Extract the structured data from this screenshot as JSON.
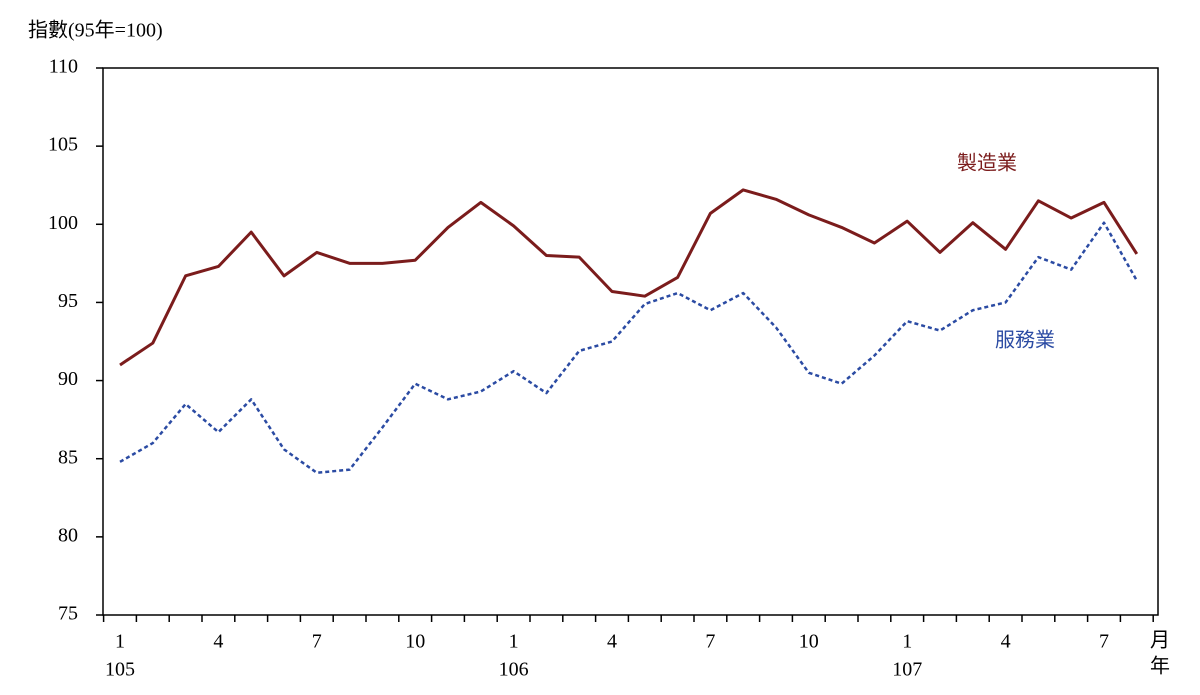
{
  "chart_data": {
    "type": "line",
    "ylabel": "指數(95年=100)",
    "xlabel": "月",
    "group_label": "年",
    "categories": [
      "1",
      null,
      null,
      "4",
      null,
      null,
      "7",
      null,
      null,
      "10",
      null,
      null,
      "1",
      null,
      null,
      "4",
      null,
      null,
      "7",
      null,
      null,
      "10",
      null,
      null,
      "1",
      null,
      null,
      "4",
      null,
      null,
      "7",
      null
    ],
    "category_groups": [
      "105",
      null,
      null,
      null,
      null,
      null,
      null,
      null,
      null,
      null,
      null,
      null,
      "106",
      null,
      null,
      null,
      null,
      null,
      null,
      null,
      null,
      null,
      null,
      null,
      "107",
      null,
      null,
      null,
      null,
      null,
      null,
      null
    ],
    "series": [
      {
        "name": "製造業",
        "color": "#7b1c1c",
        "dashed": false,
        "values": [
          91.0,
          92.4,
          96.7,
          97.3,
          99.5,
          96.7,
          98.2,
          97.5,
          97.5,
          97.7,
          99.8,
          101.4,
          99.9,
          98.0,
          97.9,
          95.7,
          95.4,
          96.6,
          100.7,
          102.2,
          101.6,
          100.6,
          99.8,
          98.8,
          100.2,
          98.2,
          100.1,
          98.4,
          101.5,
          100.4,
          101.4,
          98.1
        ]
      },
      {
        "name": "服務業",
        "color": "#2b4ba3",
        "dashed": true,
        "values": [
          84.8,
          86.0,
          88.5,
          86.7,
          88.8,
          85.6,
          84.1,
          84.3,
          87.0,
          89.8,
          88.8,
          89.3,
          90.6,
          89.2,
          91.9,
          92.5,
          94.9,
          95.6,
          94.5,
          95.6,
          93.4,
          90.5,
          89.8,
          91.6,
          93.8,
          93.2,
          94.5,
          95.0,
          97.9,
          97.1,
          100.1,
          96.4
        ]
      }
    ],
    "ylim": [
      75,
      110
    ],
    "yticks": [
      75,
      80,
      85,
      90,
      95,
      100,
      105,
      110
    ]
  }
}
